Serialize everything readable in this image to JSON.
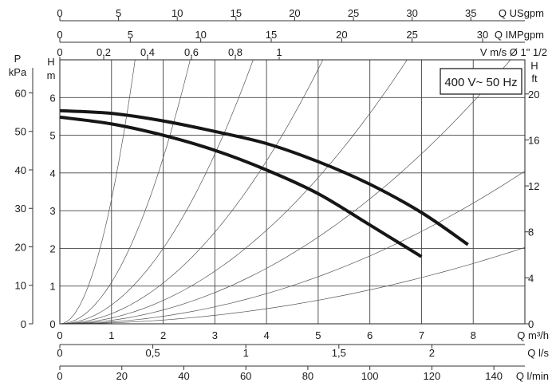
{
  "chart_data": {
    "type": "line",
    "legend_box": "400 V~ 50 Hz",
    "x_axes": {
      "q_m3h": {
        "label": "Q m³/h",
        "range": [
          0,
          9
        ],
        "ticks": [
          "0",
          "1",
          "2",
          "3",
          "4",
          "5",
          "6",
          "7",
          "8"
        ],
        "values": [
          0,
          1,
          2,
          3,
          4,
          5,
          6,
          7,
          8
        ]
      },
      "q_ls": {
        "label": "Q l/s",
        "range": [
          0,
          2.5
        ],
        "ticks": [
          "0",
          "0,5",
          "1",
          "1,5",
          "2"
        ],
        "values": [
          0,
          0.5,
          1,
          1.5,
          2
        ]
      },
      "q_lmin": {
        "label": "Q l/min",
        "range": [
          0,
          150
        ],
        "ticks": [
          "0",
          "20",
          "40",
          "60",
          "80",
          "100",
          "120",
          "140"
        ],
        "values": [
          0,
          20,
          40,
          60,
          80,
          100,
          120,
          140
        ]
      },
      "q_usgpm": {
        "label": "Q USgpm",
        "range": [
          0,
          39.6
        ],
        "ticks": [
          "0",
          "5",
          "10",
          "15",
          "20",
          "25",
          "30",
          "35"
        ],
        "values": [
          0,
          5,
          10,
          15,
          20,
          25,
          30,
          35
        ]
      },
      "q_impgpm": {
        "label": "Q IMPgpm",
        "range": [
          0,
          33
        ],
        "ticks": [
          "0",
          "5",
          "10",
          "15",
          "20",
          "25",
          "30"
        ],
        "values": [
          0,
          5,
          10,
          15,
          20,
          25,
          30
        ]
      },
      "v_ms": {
        "label": "V m/s Ø 1\" 1/2",
        "range": [
          0,
          2.12
        ],
        "ticks": [
          "0",
          "0,2",
          "0,4",
          "0,6",
          "0,8",
          "1"
        ],
        "values": [
          0,
          0.2,
          0.4,
          0.6,
          0.8,
          1
        ]
      }
    },
    "y_axes": {
      "h_m": {
        "label_top": "H",
        "label_bottom": "m",
        "range": [
          0,
          7
        ],
        "ticks": [
          "0",
          "1",
          "2",
          "3",
          "4",
          "5",
          "6"
        ],
        "values": [
          0,
          1,
          2,
          3,
          4,
          5,
          6
        ]
      },
      "p_kpa": {
        "label_top": "P",
        "label_bottom": "kPa",
        "range": [
          0,
          68.6
        ],
        "ticks": [
          "0",
          "10",
          "20",
          "30",
          "40",
          "50",
          "60"
        ],
        "values": [
          0,
          10,
          20,
          30,
          40,
          50,
          60
        ]
      },
      "h_ft": {
        "label_top": "H",
        "label_bottom": "ft",
        "range": [
          0,
          22.97
        ],
        "ticks": [
          "0",
          "4",
          "8",
          "12",
          "16",
          "20"
        ],
        "values": [
          0,
          4,
          8,
          12,
          16,
          20
        ]
      }
    },
    "grid": true,
    "series": [
      {
        "x": [
          0,
          1,
          2,
          3,
          4,
          5,
          6,
          7,
          7.9
        ],
        "y": [
          5.65,
          5.58,
          5.38,
          5.1,
          4.78,
          4.3,
          3.7,
          2.95,
          2.1
        ]
      },
      {
        "x": [
          0,
          1,
          2,
          3,
          4,
          5,
          6,
          7
        ],
        "y": [
          5.48,
          5.3,
          5.0,
          4.6,
          4.08,
          3.45,
          2.62,
          1.78
        ]
      }
    ],
    "system_curves_k": [
      3.3,
      1.1,
      0.5,
      0.27,
      0.155,
      0.092,
      0.05,
      0.025
    ]
  }
}
